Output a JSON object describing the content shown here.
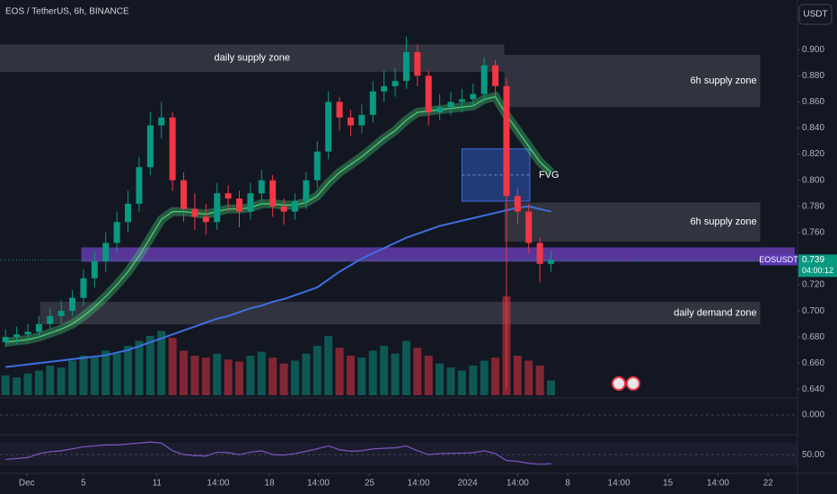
{
  "chart_data": {
    "type": "candlestick",
    "title": "EOS / TetherUS, 6h, BINANCE",
    "currency": "USDT",
    "symbol_label": "EOSUSDT",
    "last_price": 0.739,
    "last_price_label": "0.739",
    "countdown": "04:00:12",
    "xlim": [
      -0.5,
      70.9
    ],
    "xticks": [
      {
        "value": 1.9,
        "label": "Dec"
      },
      {
        "value": 7,
        "label": "5"
      },
      {
        "value": 13.6,
        "label": "11"
      },
      {
        "value": 19.1,
        "label": "14:00"
      },
      {
        "value": 23.7,
        "label": "18"
      },
      {
        "value": 28.1,
        "label": "14:00"
      },
      {
        "value": 32.7,
        "label": "25"
      },
      {
        "value": 37.1,
        "label": "14:00"
      },
      {
        "value": 41.5,
        "label": "2024"
      },
      {
        "value": 46,
        "label": "14:00"
      },
      {
        "value": 50.5,
        "label": "8"
      },
      {
        "value": 55.1,
        "label": "14:00"
      },
      {
        "value": 59.5,
        "label": "15"
      },
      {
        "value": 64,
        "label": "14:00"
      },
      {
        "value": 68.5,
        "label": "22"
      }
    ],
    "ylim": [
      0.632,
      0.938
    ],
    "yticks": [
      {
        "value": 0.64,
        "label": "0.640"
      },
      {
        "value": 0.66,
        "label": "0.660"
      },
      {
        "value": 0.68,
        "label": "0.680"
      },
      {
        "value": 0.7,
        "label": "0.700"
      },
      {
        "value": 0.72,
        "label": "0.720"
      },
      {
        "value": 0.76,
        "label": "0.760"
      },
      {
        "value": 0.78,
        "label": "0.780"
      },
      {
        "value": 0.8,
        "label": "0.800"
      },
      {
        "value": 0.82,
        "label": "0.820"
      },
      {
        "value": 0.84,
        "label": "0.840"
      },
      {
        "value": 0.86,
        "label": "0.860"
      },
      {
        "value": 0.88,
        "label": "0.880"
      },
      {
        "value": 0.9,
        "label": "0.900"
      }
    ],
    "up_color": "#089981",
    "down_color": "#f23645",
    "open": [
      0.676,
      0.68,
      0.682,
      0.684,
      0.69,
      0.696,
      0.7,
      0.71,
      0.725,
      0.738,
      0.752,
      0.768,
      0.782,
      0.81,
      0.842,
      0.848,
      0.8,
      0.778,
      0.772,
      0.768,
      0.79,
      0.786,
      0.776,
      0.79,
      0.8,
      0.78,
      0.776,
      0.784,
      0.8,
      0.822,
      0.86,
      0.848,
      0.842,
      0.85,
      0.868,
      0.872,
      0.876,
      0.898,
      0.88,
      0.852,
      0.856,
      0.86,
      0.862,
      0.866,
      0.888,
      0.872,
      0.788,
      0.776,
      0.752,
      0.736
    ],
    "high": [
      0.686,
      0.688,
      0.69,
      0.696,
      0.702,
      0.708,
      0.716,
      0.732,
      0.746,
      0.76,
      0.776,
      0.792,
      0.818,
      0.852,
      0.86,
      0.852,
      0.806,
      0.79,
      0.782,
      0.798,
      0.796,
      0.792,
      0.798,
      0.808,
      0.804,
      0.786,
      0.79,
      0.806,
      0.83,
      0.868,
      0.864,
      0.854,
      0.858,
      0.876,
      0.884,
      0.886,
      0.91,
      0.904,
      0.884,
      0.866,
      0.868,
      0.87,
      0.874,
      0.894,
      0.892,
      0.878,
      0.794,
      0.782,
      0.756,
      0.746
    ],
    "low": [
      0.672,
      0.675,
      0.678,
      0.68,
      0.686,
      0.69,
      0.696,
      0.704,
      0.718,
      0.73,
      0.744,
      0.76,
      0.776,
      0.804,
      0.832,
      0.792,
      0.768,
      0.762,
      0.758,
      0.762,
      0.776,
      0.764,
      0.77,
      0.784,
      0.772,
      0.766,
      0.77,
      0.778,
      0.794,
      0.816,
      0.838,
      0.834,
      0.836,
      0.844,
      0.86,
      0.864,
      0.87,
      0.872,
      0.842,
      0.846,
      0.85,
      0.852,
      0.856,
      0.86,
      0.864,
      0.64,
      0.766,
      0.744,
      0.722,
      0.73
    ],
    "close": [
      0.68,
      0.682,
      0.684,
      0.69,
      0.696,
      0.7,
      0.71,
      0.725,
      0.738,
      0.752,
      0.768,
      0.782,
      0.81,
      0.842,
      0.848,
      0.8,
      0.778,
      0.772,
      0.768,
      0.79,
      0.786,
      0.776,
      0.79,
      0.8,
      0.78,
      0.776,
      0.784,
      0.8,
      0.822,
      0.86,
      0.848,
      0.842,
      0.85,
      0.868,
      0.872,
      0.876,
      0.898,
      0.88,
      0.852,
      0.856,
      0.86,
      0.862,
      0.866,
      0.888,
      0.872,
      0.788,
      0.776,
      0.752,
      0.736,
      0.739
    ],
    "volume": [
      20,
      18,
      22,
      25,
      30,
      28,
      35,
      40,
      38,
      45,
      42,
      50,
      55,
      60,
      65,
      58,
      45,
      40,
      38,
      42,
      36,
      34,
      40,
      44,
      38,
      32,
      35,
      42,
      50,
      60,
      48,
      40,
      38,
      45,
      50,
      42,
      55,
      48,
      40,
      32,
      28,
      25,
      30,
      35,
      38,
      100,
      40,
      35,
      30,
      15
    ],
    "ma": {
      "color": "#3d6fe0",
      "values": [
        0.657,
        0.658,
        0.659,
        0.66,
        0.661,
        0.662,
        0.663,
        0.664,
        0.665,
        0.666,
        0.668,
        0.67,
        0.673,
        0.676,
        0.679,
        0.682,
        0.685,
        0.688,
        0.691,
        0.694,
        0.696,
        0.699,
        0.702,
        0.704,
        0.707,
        0.709,
        0.712,
        0.715,
        0.718,
        0.724,
        0.73,
        0.735,
        0.74,
        0.744,
        0.748,
        0.752,
        0.756,
        0.759,
        0.762,
        0.765,
        0.767,
        0.769,
        0.771,
        0.773,
        0.775,
        0.777,
        0.779,
        0.78,
        0.778,
        0.776
      ]
    },
    "ema": {
      "color": "#4cd77a",
      "values": [
        0.676,
        0.677,
        0.678,
        0.68,
        0.683,
        0.686,
        0.69,
        0.696,
        0.703,
        0.711,
        0.72,
        0.73,
        0.742,
        0.756,
        0.77,
        0.776,
        0.776,
        0.775,
        0.774,
        0.776,
        0.778,
        0.778,
        0.779,
        0.782,
        0.782,
        0.781,
        0.781,
        0.783,
        0.788,
        0.798,
        0.806,
        0.812,
        0.818,
        0.825,
        0.832,
        0.838,
        0.846,
        0.852,
        0.853,
        0.854,
        0.855,
        0.856,
        0.857,
        0.862,
        0.864,
        0.85,
        0.838,
        0.826,
        0.814,
        0.806
      ]
    },
    "zones": [
      {
        "label": "daily supply zone",
        "x": [
          -0.5,
          44.8
        ],
        "y": [
          0.883,
          0.904
        ],
        "color": "#4a4d57"
      },
      {
        "label": "6h supply zone",
        "x": [
          44.8,
          67.8
        ],
        "y": [
          0.856,
          0.896
        ],
        "color": "#4a4d57"
      },
      {
        "label": "FVG",
        "x": [
          41,
          47.1
        ],
        "y": [
          0.784,
          0.824
        ],
        "color": "#2a4a9a"
      },
      {
        "label": "6h supply zone",
        "x": [
          44.8,
          67.8
        ],
        "y": [
          0.753,
          0.783
        ],
        "color": "#4a4d57"
      },
      {
        "x": [
          6.8,
          70.9
        ],
        "y": [
          0.7376,
          0.7486
        ],
        "color": "#6a3fb8"
      },
      {
        "label": "daily demand zone",
        "x": [
          3.1,
          67.8
        ],
        "y": [
          0.6897,
          0.7069
        ],
        "color": "#4a4d57"
      }
    ],
    "macd_ticks": [
      {
        "value": 0,
        "label": "0.000"
      }
    ],
    "rsi": {
      "color": "#7e57c2",
      "lim": [
        15,
        80
      ],
      "values": [
        40,
        42,
        44,
        52,
        56,
        58,
        62,
        66,
        68,
        70,
        70,
        72,
        74,
        76,
        74,
        58,
        50,
        48,
        47,
        55,
        54,
        50,
        55,
        58,
        50,
        49,
        52,
        57,
        62,
        68,
        60,
        57,
        58,
        62,
        63,
        64,
        68,
        58,
        50,
        52,
        53,
        53,
        54,
        58,
        52,
        38,
        36,
        32,
        30,
        31
      ]
    },
    "rsi_ticks": [
      {
        "value": 50,
        "label": "50.00"
      }
    ]
  }
}
